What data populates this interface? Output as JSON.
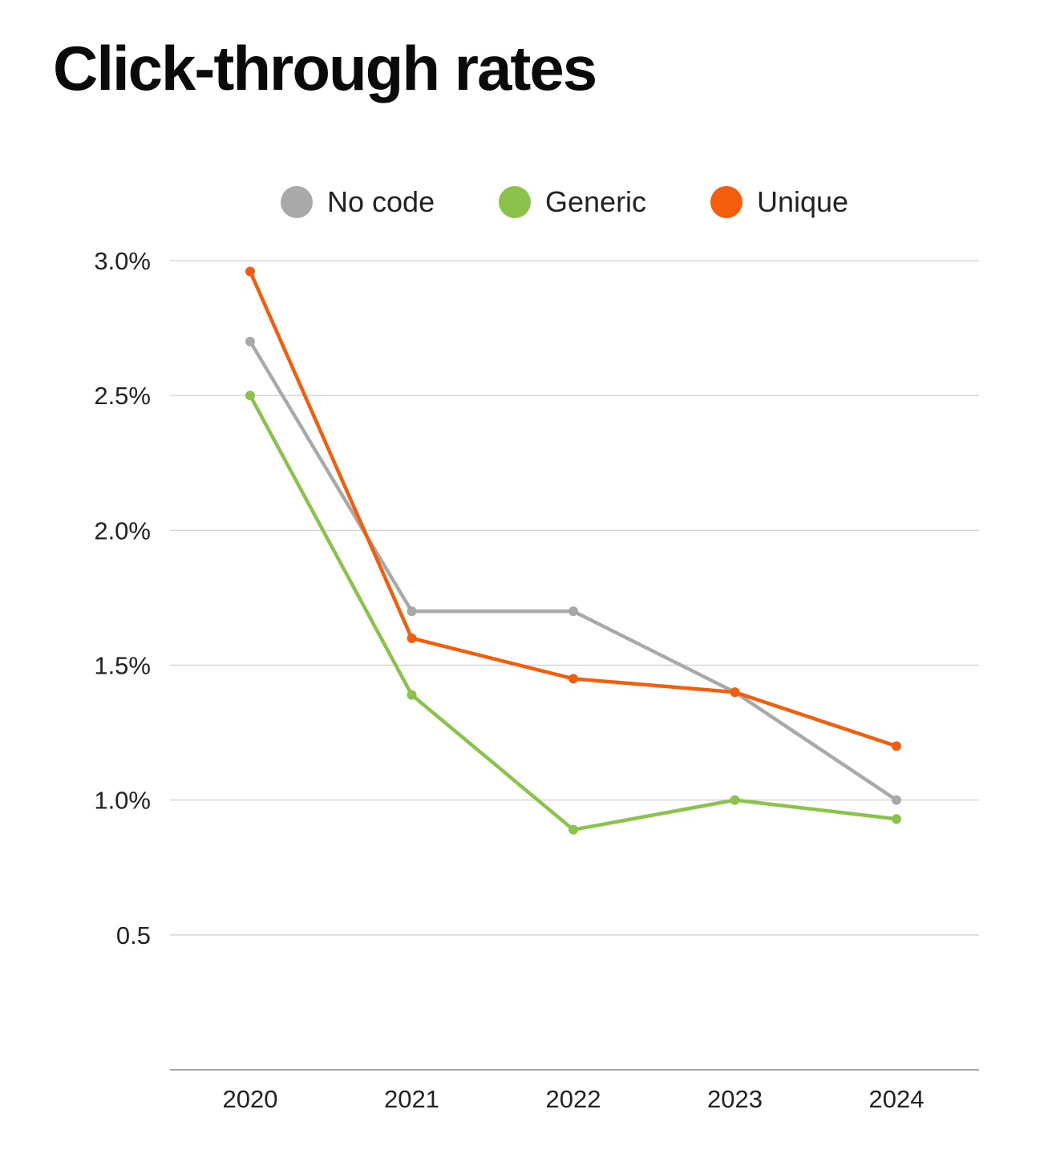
{
  "chart_data": {
    "type": "line",
    "title": "Click-through rates",
    "categories": [
      "2020",
      "2021",
      "2022",
      "2023",
      "2024"
    ],
    "series": [
      {
        "name": "No code",
        "color": "#a9a9a9",
        "values": [
          2.7,
          1.7,
          1.7,
          1.4,
          1.0
        ]
      },
      {
        "name": "Generic",
        "color": "#8bc34a",
        "values": [
          2.5,
          1.39,
          0.89,
          1.0,
          0.93
        ]
      },
      {
        "name": "Unique",
        "color": "#f45d0c",
        "values": [
          2.96,
          1.6,
          1.45,
          1.4,
          1.2
        ]
      }
    ],
    "yticks": [
      {
        "value": 0.5,
        "label": "0.5"
      },
      {
        "value": 1.0,
        "label": "1.0%"
      },
      {
        "value": 1.5,
        "label": "1.5%"
      },
      {
        "value": 2.0,
        "label": "2.0%"
      },
      {
        "value": 2.5,
        "label": "2.5%"
      },
      {
        "value": 3.0,
        "label": "3.0%"
      }
    ],
    "ylim": [
      0,
      3.0
    ],
    "xlabel": "",
    "ylabel": "",
    "grid": true,
    "legend_position": "top-center",
    "grid_color": "#d6d6d6",
    "axis_color": "#8a8a8a"
  }
}
